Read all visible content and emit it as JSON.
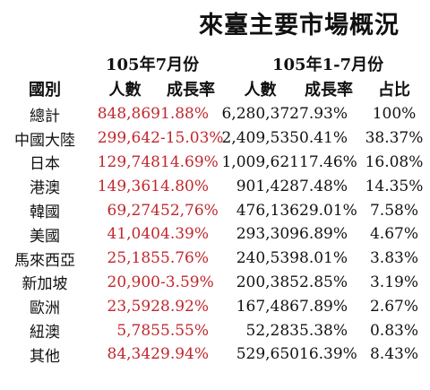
{
  "title": "來臺主要市場概況",
  "groups": {
    "july": "105年7月份",
    "jan_jul": "105年1-7月份"
  },
  "headers": [
    "國別",
    "人數",
    "成長率",
    "人數",
    "成長率",
    "占比"
  ],
  "colors": {
    "highlight_red": "#c0272d",
    "text": "#111111"
  },
  "rows": [
    {
      "country": "總計",
      "jul_count": "848,869",
      "jul_growth": "1.88%",
      "ytd_count": "6,280,372",
      "ytd_growth": "7.93%",
      "share": "100%"
    },
    {
      "country": "中國大陸",
      "jul_count": "299,642",
      "jul_growth": "-15.03%",
      "ytd_count": "2,409,535",
      "ytd_growth": "0.41%",
      "share": "38.37%"
    },
    {
      "country": "日本",
      "jul_count": "129,748",
      "jul_growth": "14.69%",
      "ytd_count": "1,009,621",
      "ytd_growth": "17.46%",
      "share": "16.08%"
    },
    {
      "country": "港澳",
      "jul_count": "149,361",
      "jul_growth": "4.80%",
      "ytd_count": "901,428",
      "ytd_growth": "7.48%",
      "share": "14.35%"
    },
    {
      "country": "韓國",
      "jul_count": "69,274",
      "jul_growth": "52,76%",
      "ytd_count": "476,136",
      "ytd_growth": "29.01%",
      "share": "7.58%"
    },
    {
      "country": "美國",
      "jul_count": "41,040",
      "jul_growth": "4.39%",
      "ytd_count": "293,309",
      "ytd_growth": "6.89%",
      "share": "4.67%"
    },
    {
      "country": "馬來西亞",
      "jul_count": "25,185",
      "jul_growth": "5.76%",
      "ytd_count": "240,539",
      "ytd_growth": "8.01%",
      "share": "3.83%"
    },
    {
      "country": "新加坡",
      "jul_count": "20,900",
      "jul_growth": "-3.59%",
      "ytd_count": "200,385",
      "ytd_growth": "2.85%",
      "share": "3.19%"
    },
    {
      "country": "歐洲",
      "jul_count": "23,592",
      "jul_growth": "8.92%",
      "ytd_count": "167,486",
      "ytd_growth": "7.89%",
      "share": "2.67%"
    },
    {
      "country": "紐澳",
      "jul_count": "5,785",
      "jul_growth": "5.55%",
      "ytd_count": "52,283",
      "ytd_growth": "5.38%",
      "share": "0.83%"
    },
    {
      "country": "其他",
      "jul_count": "84,342",
      "jul_growth": "9.94%",
      "ytd_count": "529,650",
      "ytd_growth": "16.39%",
      "share": "8.43%"
    }
  ]
}
